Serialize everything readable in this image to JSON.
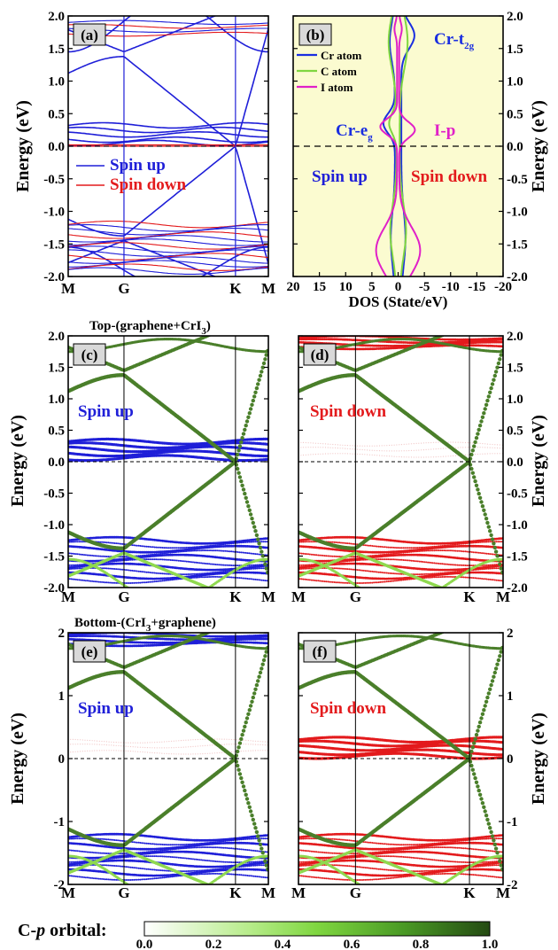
{
  "colors": {
    "spin_up": "#1f1fd8",
    "spin_down": "#e31a1c",
    "c_orbital": "#4a7f2a",
    "cr": "#1a2ee0",
    "c_atom": "#7fd640",
    "i_atom": "#e020c8",
    "dos_bg": "#fbfbd0"
  },
  "k_labels": [
    "M",
    "G",
    "K",
    "M"
  ],
  "energy_label": "Energy (eV)",
  "yticks_fine": [
    "2.0",
    "1.5",
    "1.0",
    "0.5",
    "0.0",
    "-0.5",
    "-1.0",
    "-1.5",
    "-2.0"
  ],
  "yticks_coarse": [
    "2",
    "1",
    "0",
    "-1",
    "-2"
  ],
  "panels": {
    "a": {
      "label": "(a)",
      "legend_up": "Spin up",
      "legend_down": "Spin down"
    },
    "b": {
      "label": "(b)",
      "xlabel": "DOS (State/eV)",
      "xticks": [
        "20",
        "15",
        "10",
        "5",
        "0",
        "-5",
        "-10",
        "-15",
        "-20"
      ],
      "legend": [
        "Cr atom",
        "C   atom",
        "I    atom"
      ],
      "ann_crt2g": "Cr-t",
      "ann_crt2g_sub": "2g",
      "ann_creg": "Cr-e",
      "ann_creg_sub": "g",
      "ann_ip": "I-p",
      "text_up": "Spin up",
      "text_down": "Spin down"
    },
    "c": {
      "label": "(c)",
      "spin": "Spin up",
      "header": "Top-(graphene+CrI",
      "header_sub": "3",
      "header_end": ")"
    },
    "d": {
      "label": "(d)",
      "spin": "Spin down"
    },
    "e": {
      "label": "(e)",
      "spin": "Spin up",
      "header": "Bottom-(CrI",
      "header_sub": "3",
      "header_end": "+graphene)"
    },
    "f": {
      "label": "(f)",
      "spin": "Spin down"
    }
  },
  "colorbar": {
    "title": "C-",
    "title_italic": "p",
    "title_end": " orbital:",
    "ticks": [
      "0.0",
      "0.2",
      "0.4",
      "0.6",
      "0.8",
      "1.0"
    ]
  },
  "chart_data": [
    {
      "type": "line",
      "panel": "a",
      "title": "",
      "xlabel": "",
      "ylabel": "Energy (eV)",
      "categories": [
        "M",
        "G",
        "K",
        "M"
      ],
      "ylim": [
        -2,
        2
      ],
      "series": [
        {
          "name": "Spin up"
        },
        {
          "name": "Spin down"
        }
      ]
    },
    {
      "type": "line",
      "panel": "b",
      "xlabel": "DOS (State/eV)",
      "ylabel": "Energy (eV)",
      "xlim": [
        20,
        -20
      ],
      "ylim": [
        -2,
        2
      ],
      "series": [
        {
          "name": "Cr atom"
        },
        {
          "name": "C   atom"
        },
        {
          "name": "I    atom"
        }
      ]
    },
    {
      "type": "scatter",
      "panel": "c",
      "title": "Top-(graphene+CrI3)",
      "ylabel": "Energy (eV)",
      "categories": [
        "M",
        "G",
        "K",
        "M"
      ],
      "ylim": [
        -2,
        2
      ]
    },
    {
      "type": "scatter",
      "panel": "d",
      "ylabel": "Energy (eV)",
      "categories": [
        "M",
        "G",
        "K",
        "M"
      ],
      "ylim": [
        -2,
        2
      ]
    },
    {
      "type": "scatter",
      "panel": "e",
      "title": "Bottom-(CrI3+graphene)",
      "ylabel": "Energy (eV)",
      "categories": [
        "M",
        "G",
        "K",
        "M"
      ],
      "ylim": [
        -2,
        2
      ]
    },
    {
      "type": "scatter",
      "panel": "f",
      "ylabel": "Energy (eV)",
      "categories": [
        "M",
        "G",
        "K",
        "M"
      ],
      "ylim": [
        -2,
        2
      ]
    }
  ]
}
